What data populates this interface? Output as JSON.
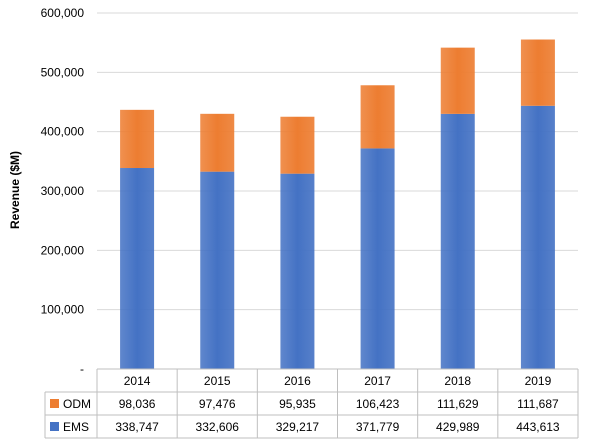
{
  "chart_data": {
    "type": "bar",
    "stacked": true,
    "title": "",
    "xlabel": "",
    "ylabel": "Revenue ($M)",
    "ylim": [
      0,
      600000
    ],
    "yticks": [
      "-",
      "100,000",
      "200,000",
      "300,000",
      "400,000",
      "500,000",
      "600,000"
    ],
    "categories": [
      "2014",
      "2015",
      "2016",
      "2017",
      "2018",
      "2019"
    ],
    "grid": "horizontal",
    "legend": "data-table",
    "series": [
      {
        "name": "EMS",
        "color": "#4472c4",
        "values": [
          338747,
          332606,
          329217,
          371779,
          429989,
          443613
        ],
        "labels": [
          "338,747",
          "332,606",
          "329,217",
          "371,779",
          "429,989",
          "443,613"
        ]
      },
      {
        "name": "ODM",
        "color": "#ed7d31",
        "values": [
          98036,
          97476,
          95935,
          106423,
          111629,
          111687
        ],
        "labels": [
          "98,036",
          "97,476",
          "95,935",
          "106,423",
          "111,629",
          "111,687"
        ]
      }
    ]
  }
}
